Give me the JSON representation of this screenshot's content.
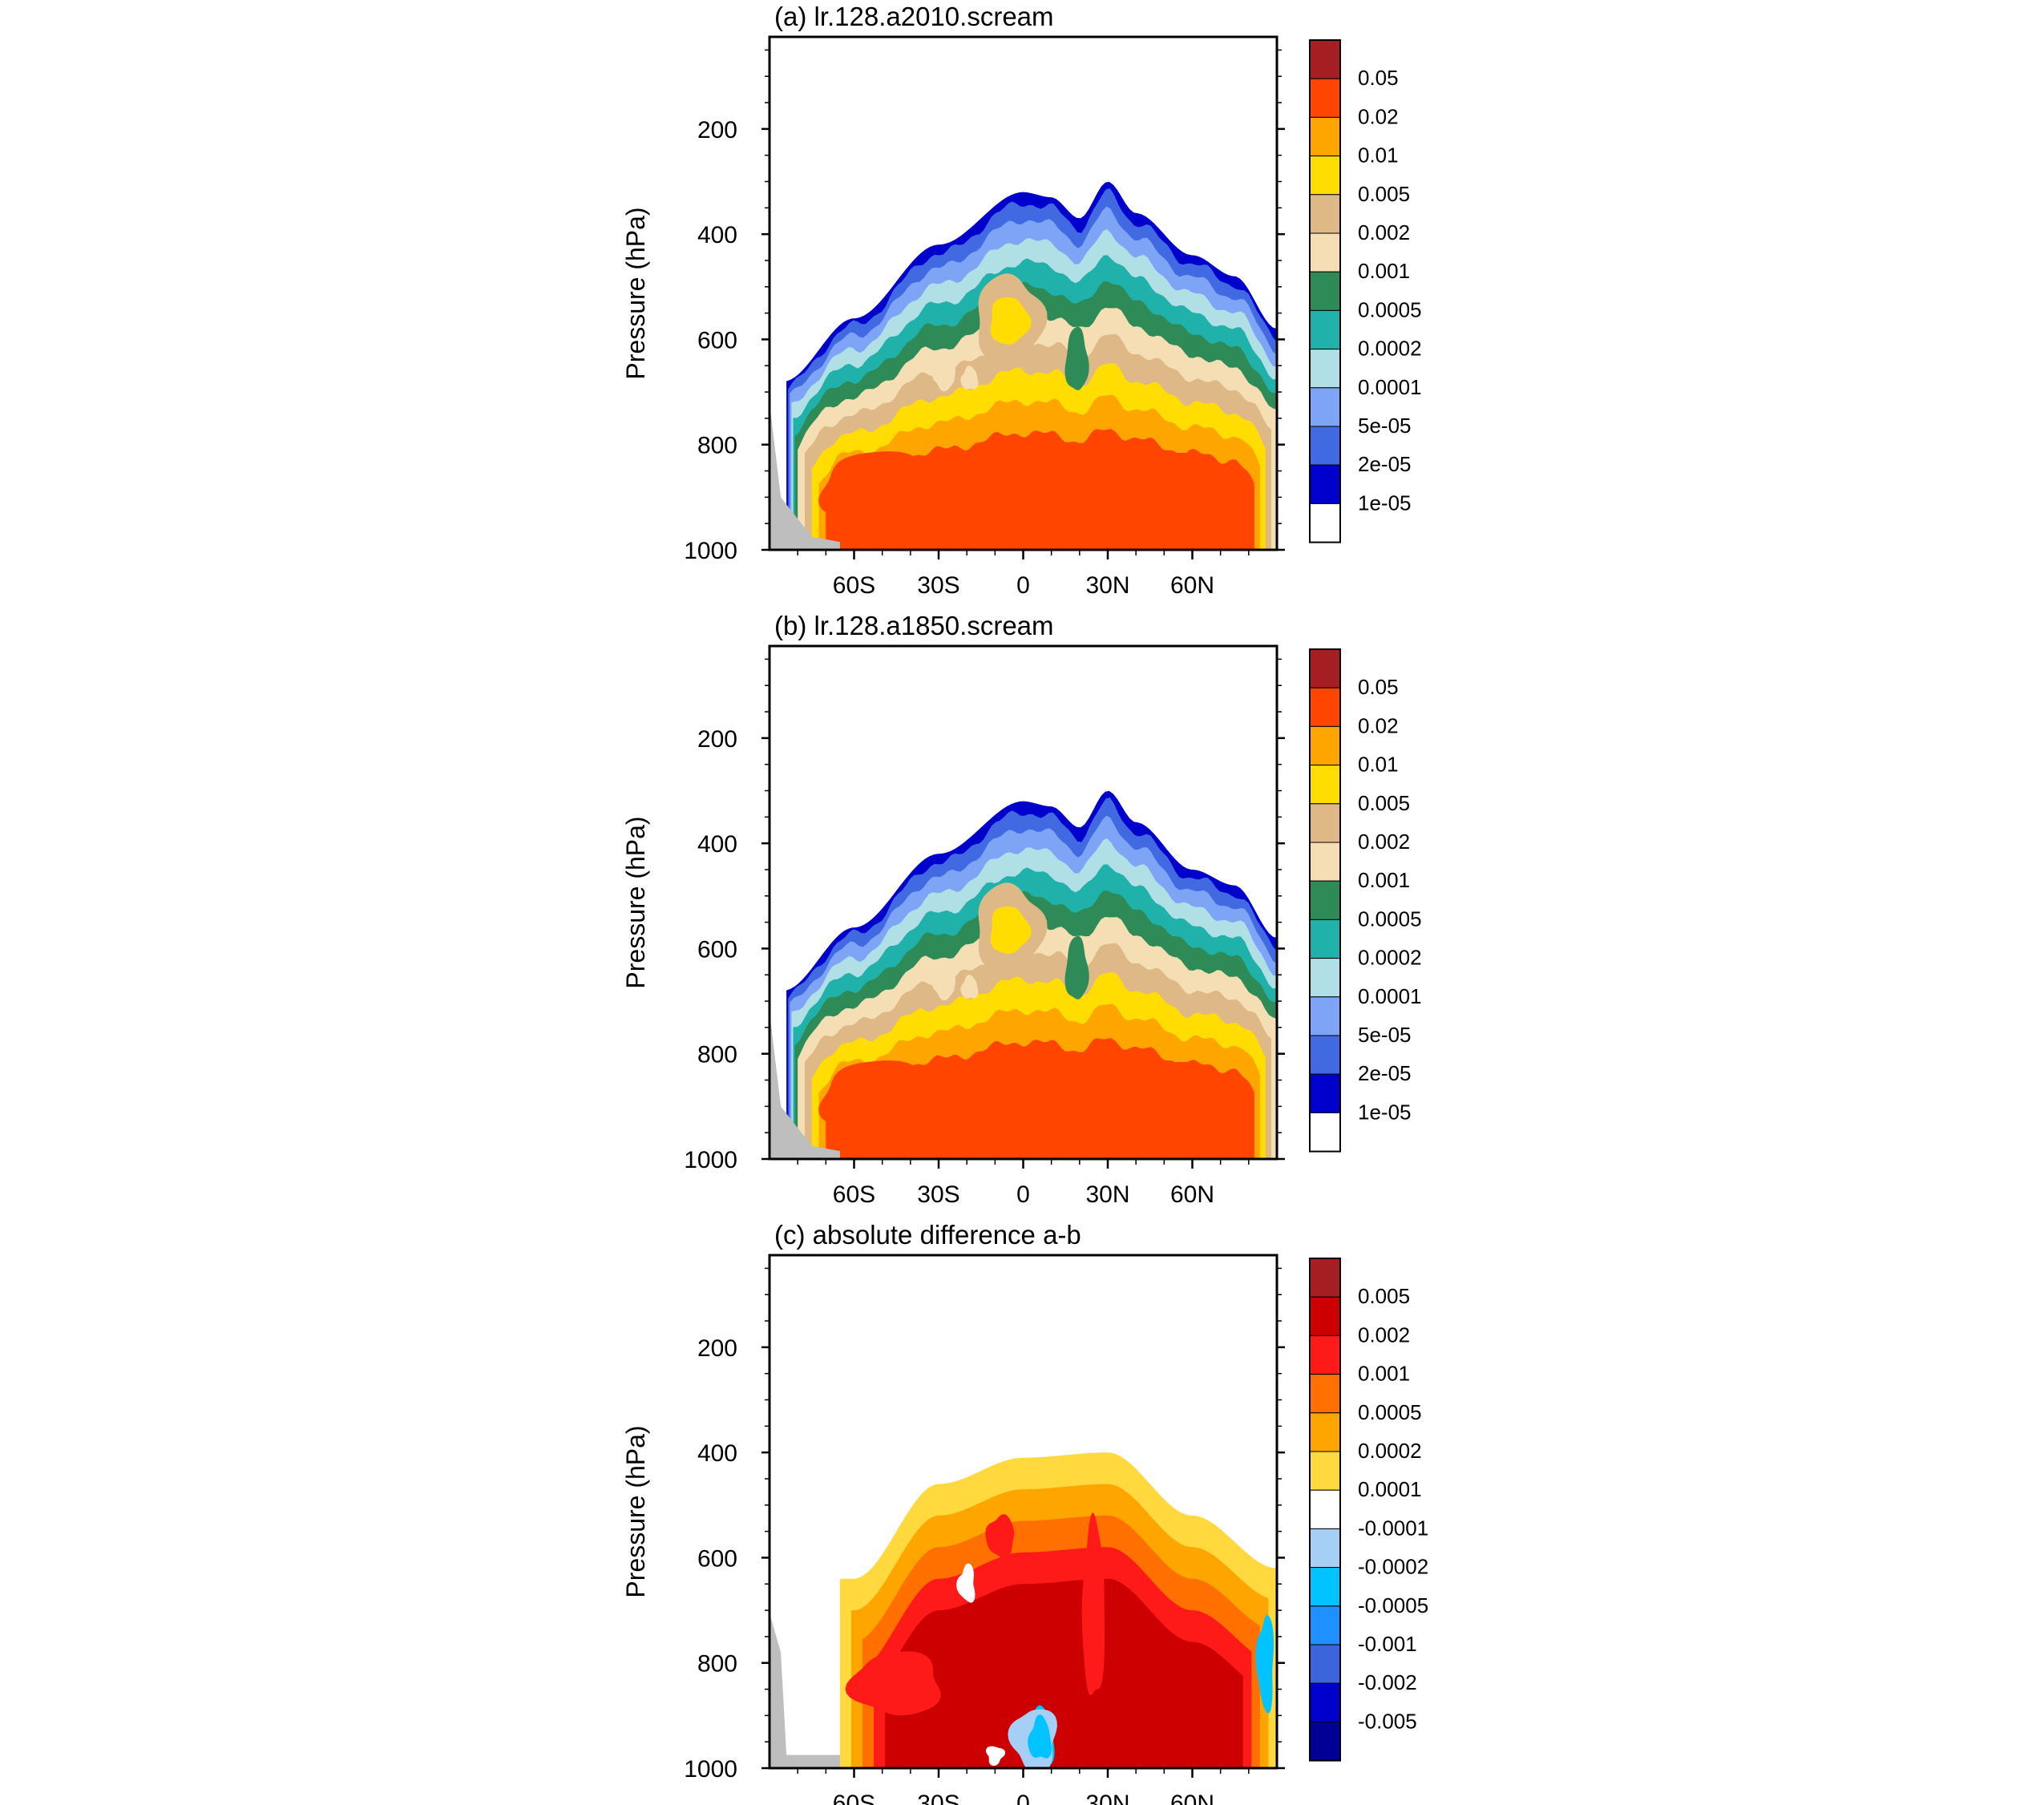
{
  "figure": {
    "panels": [
      {
        "id": "a",
        "title": "(a) lr.128.a2010.scream",
        "ylabel": "Pressure (hPa)",
        "yticks": [
          "200",
          "400",
          "600",
          "800",
          "1000"
        ],
        "xticks": [
          "60S",
          "30S",
          "0",
          "30N",
          "60N"
        ],
        "legend": [
          "0.05",
          "0.02",
          "0.01",
          "0.005",
          "0.002",
          "0.001",
          "0.0005",
          "0.0002",
          "0.0001",
          "5e-05",
          "2e-05",
          "1e-05"
        ],
        "colors": [
          "#a51f22",
          "#ff4500",
          "#ffa500",
          "#ffdd00",
          "#deb887",
          "#f5deb3",
          "#2e8b57",
          "#20b2aa",
          "#b0e0e6",
          "#7ea5f5",
          "#4169e1",
          "#0000cd",
          "#ffffff"
        ]
      },
      {
        "id": "b",
        "title": "(b) lr.128.a1850.scream",
        "ylabel": "Pressure (hPa)",
        "yticks": [
          "200",
          "400",
          "600",
          "800",
          "1000"
        ],
        "xticks": [
          "60S",
          "30S",
          "0",
          "30N",
          "60N"
        ],
        "legend": [
          "0.05",
          "0.02",
          "0.01",
          "0.005",
          "0.002",
          "0.001",
          "0.0005",
          "0.0002",
          "0.0001",
          "5e-05",
          "2e-05",
          "1e-05"
        ],
        "colors": [
          "#a51f22",
          "#ff4500",
          "#ffa500",
          "#ffdd00",
          "#deb887",
          "#f5deb3",
          "#2e8b57",
          "#20b2aa",
          "#b0e0e6",
          "#7ea5f5",
          "#4169e1",
          "#0000cd",
          "#ffffff"
        ]
      },
      {
        "id": "c",
        "title": "(c) absolute difference a-b",
        "ylabel": "Pressure (hPa)",
        "yticks": [
          "200",
          "400",
          "600",
          "800",
          "1000"
        ],
        "xticks": [
          "60S",
          "30S",
          "0",
          "30N",
          "60N"
        ],
        "legend": [
          "0.005",
          "0.002",
          "0.001",
          "0.0005",
          "0.0002",
          "0.0001",
          "-0.0001",
          "-0.0002",
          "-0.0005",
          "-0.001",
          "-0.002",
          "-0.005"
        ],
        "colors": [
          "#a51f22",
          "#cc0000",
          "#ff1a1a",
          "#ff7000",
          "#ffa500",
          "#ffd93d",
          "#ffffff",
          "#a6cff5",
          "#00c3ff",
          "#1e90ff",
          "#3c64dc",
          "#0000cd",
          "#000096"
        ]
      }
    ]
  },
  "chart_data": [
    {
      "type": "heatmap",
      "title": "(a) lr.128.a2010.scream",
      "xlabel": "",
      "ylabel": "Pressure (hPa)",
      "x_range": [
        -90,
        90
      ],
      "y_range": [
        1000,
        25
      ],
      "y_log": false,
      "contour_levels": [
        1e-05,
        2e-05,
        5e-05,
        0.0001,
        0.0002,
        0.0005,
        0.001,
        0.002,
        0.005,
        0.01,
        0.02,
        0.05
      ],
      "outer_boundary_lat_p": [
        [
          -85,
          680
        ],
        [
          -60,
          560
        ],
        [
          -30,
          420
        ],
        [
          0,
          320
        ],
        [
          10,
          330
        ],
        [
          20,
          370
        ],
        [
          30,
          300
        ],
        [
          40,
          360
        ],
        [
          60,
          440
        ],
        [
          75,
          480
        ],
        [
          90,
          580
        ]
      ],
      "max_core_lat_p": [
        [
          -60,
          900
        ],
        [
          -30,
          870
        ],
        [
          0,
          880
        ],
        [
          30,
          870
        ],
        [
          60,
          900
        ]
      ],
      "grid": false,
      "legend_position": "right"
    },
    {
      "type": "heatmap",
      "title": "(b) lr.128.a1850.scream",
      "xlabel": "",
      "ylabel": "Pressure (hPa)",
      "x_range": [
        -90,
        90
      ],
      "y_range": [
        1000,
        25
      ],
      "y_log": false,
      "contour_levels": [
        1e-05,
        2e-05,
        5e-05,
        0.0001,
        0.0002,
        0.0005,
        0.001,
        0.002,
        0.005,
        0.01,
        0.02,
        0.05
      ],
      "outer_boundary_lat_p": [
        [
          -85,
          680
        ],
        [
          -60,
          560
        ],
        [
          -30,
          420
        ],
        [
          0,
          320
        ],
        [
          10,
          330
        ],
        [
          20,
          370
        ],
        [
          30,
          300
        ],
        [
          40,
          360
        ],
        [
          60,
          450
        ],
        [
          75,
          480
        ],
        [
          90,
          580
        ]
      ],
      "max_core_lat_p": [
        [
          -60,
          900
        ],
        [
          -30,
          870
        ],
        [
          0,
          880
        ],
        [
          30,
          870
        ],
        [
          60,
          900
        ]
      ],
      "grid": false,
      "legend_position": "right"
    },
    {
      "type": "heatmap",
      "title": "(c) absolute difference a-b",
      "xlabel": "",
      "ylabel": "Pressure (hPa)",
      "x_range": [
        -90,
        90
      ],
      "y_range": [
        1000,
        25
      ],
      "y_log": false,
      "contour_levels": [
        -0.005,
        -0.002,
        -0.001,
        -0.0005,
        -0.0002,
        -0.0001,
        0.0001,
        0.0002,
        0.0005,
        0.001,
        0.002,
        0.005
      ],
      "positive_region_lat_p": [
        [
          -60,
          640
        ],
        [
          -30,
          460
        ],
        [
          0,
          410
        ],
        [
          30,
          400
        ],
        [
          60,
          520
        ],
        [
          90,
          620
        ]
      ],
      "max_region_lat_p": [
        [
          40,
          820
        ],
        [
          60,
          870
        ]
      ],
      "negative_region_lat_p": [
        [
          5,
          950
        ],
        [
          90,
          720
        ]
      ],
      "grid": false,
      "legend_position": "right"
    }
  ]
}
